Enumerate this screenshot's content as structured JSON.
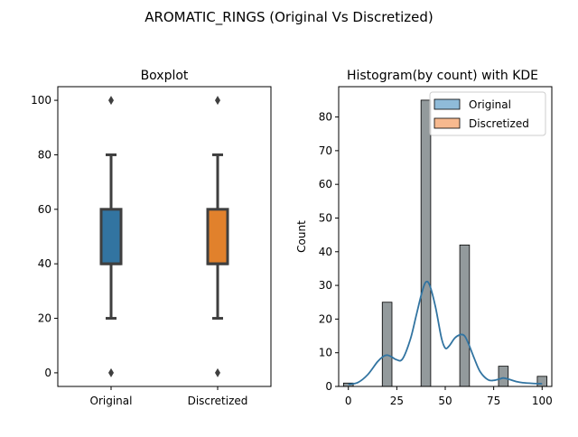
{
  "figure": {
    "suptitle": "AROMATIC_RINGS (Original Vs Discretized)"
  },
  "colors": {
    "original": "#3274a1",
    "discretized": "#e1812c",
    "box_edge": "#3f3f3f",
    "hist_original": "#8fbbd9",
    "hist_discretized": "#f7b98f",
    "hist_overlap": "#939a9c",
    "kde": "#3274a1"
  },
  "chart_data": [
    {
      "type": "box",
      "title": "Boxplot",
      "xlabel": "",
      "ylabel": "",
      "categories": [
        "Original",
        "Discretized"
      ],
      "ylim": [
        -5,
        105
      ],
      "yticks": [
        0,
        20,
        40,
        60,
        80,
        100
      ],
      "series": [
        {
          "name": "Original",
          "whisker_low": 20,
          "q1": 40,
          "median": 40,
          "q3": 60,
          "whisker_high": 80,
          "outliers": [
            0,
            100
          ]
        },
        {
          "name": "Discretized",
          "whisker_low": 20,
          "q1": 40,
          "median": 40,
          "q3": 60,
          "whisker_high": 80,
          "outliers": [
            0,
            100
          ]
        }
      ]
    },
    {
      "type": "bar",
      "title": "Histogram(by count) with KDE",
      "xlabel": "",
      "ylabel": "Count",
      "xlim": [
        -5,
        105
      ],
      "ylim": [
        0,
        89
      ],
      "xticks": [
        0,
        25,
        50,
        75,
        100
      ],
      "yticks": [
        0,
        10,
        20,
        30,
        40,
        50,
        60,
        70,
        80
      ],
      "legend": {
        "position": "upper-right",
        "entries": [
          "Original",
          "Discretized"
        ]
      },
      "bin_width": 5,
      "bins": [
        {
          "x": 0,
          "count": 1
        },
        {
          "x": 20,
          "count": 25
        },
        {
          "x": 40,
          "count": 85
        },
        {
          "x": 60,
          "count": 42
        },
        {
          "x": 80,
          "count": 6
        },
        {
          "x": 100,
          "count": 3
        }
      ],
      "kde": {
        "x": [
          0,
          5,
          10,
          15,
          18,
          20,
          22,
          25,
          28,
          32,
          35,
          38,
          40,
          42,
          45,
          48,
          50,
          52,
          55,
          58,
          60,
          62,
          65,
          68,
          72,
          75,
          78,
          80,
          83,
          87,
          90,
          95,
          100
        ],
        "y": [
          0.6,
          1.2,
          3.5,
          7.3,
          8.9,
          9.3,
          8.9,
          7.9,
          8.2,
          14,
          21,
          28,
          31,
          30,
          23.5,
          14.5,
          11.4,
          12,
          14.4,
          15.4,
          15,
          12.7,
          8.3,
          4.4,
          2,
          1.8,
          2.2,
          2.5,
          2.1,
          1.4,
          1.1,
          0.9,
          0.8
        ]
      }
    }
  ]
}
